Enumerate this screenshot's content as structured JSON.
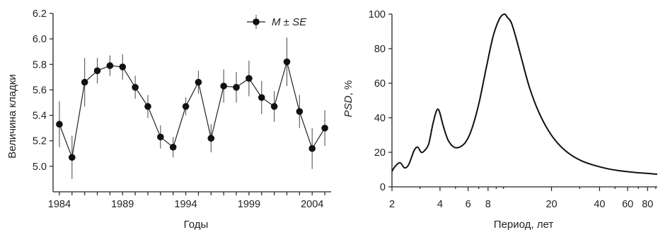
{
  "chart_data": [
    {
      "type": "line",
      "ylabel": "Величина кладки",
      "xlabel": "Годы",
      "xlim": [
        1983.5,
        2005.5
      ],
      "ylim": [
        4.8,
        6.2
      ],
      "x_ticks": [
        1984,
        1989,
        1994,
        1999,
        2004
      ],
      "y_ticks": [
        "5.0",
        "5.2",
        "5.4",
        "5.6",
        "5.8",
        "6.0",
        "6.2"
      ],
      "legend": {
        "prefix": "M",
        "middle": " ± ",
        "suffix": "SE",
        "position": "top-right"
      },
      "series": [
        {
          "name": "M ± SE",
          "x": [
            1984,
            1985,
            1986,
            1987,
            1988,
            1989,
            1990,
            1991,
            1992,
            1993,
            1994,
            1995,
            1996,
            1997,
            1998,
            1999,
            2000,
            2001,
            2002,
            2003,
            2004,
            2005
          ],
          "y": [
            5.33,
            5.07,
            5.66,
            5.75,
            5.79,
            5.78,
            5.62,
            5.47,
            5.23,
            5.15,
            5.47,
            5.66,
            5.22,
            5.63,
            5.62,
            5.69,
            5.54,
            5.47,
            5.82,
            5.43,
            5.14,
            5.3
          ],
          "err": [
            0.18,
            0.17,
            0.19,
            0.1,
            0.08,
            0.1,
            0.09,
            0.09,
            0.09,
            0.08,
            0.07,
            0.09,
            0.11,
            0.13,
            0.12,
            0.14,
            0.13,
            0.12,
            0.19,
            0.13,
            0.16,
            0.14
          ]
        }
      ]
    },
    {
      "type": "line",
      "ylabel_italic": "PSD",
      "ylabel_rest": ", %",
      "xlabel": "Период, лет",
      "x_scale": "log",
      "xlim": [
        2,
        92
      ],
      "ylim": [
        0,
        100
      ],
      "x_ticks": [
        2,
        4,
        6,
        8,
        20,
        40,
        60,
        80
      ],
      "y_ticks": [
        "0",
        "20",
        "40",
        "60",
        "80",
        "100"
      ],
      "series": [
        {
          "x": [
            2.0,
            2.1,
            2.25,
            2.4,
            2.55,
            2.75,
            2.9,
            3.05,
            3.2,
            3.4,
            3.6,
            3.8,
            3.95,
            4.2,
            4.5,
            4.9,
            5.3,
            5.8,
            6.3,
            7.0,
            7.8,
            8.6,
            9.4,
            10.1,
            10.6,
            11.2,
            12.0,
            13.0,
            14.5,
            16.5,
            19.0,
            22.0,
            26.0,
            31.0,
            37.0,
            45.0,
            55.0,
            68.0,
            80.0,
            92.0
          ],
          "y": [
            9,
            12,
            14,
            11,
            13,
            21,
            23,
            20,
            21,
            25,
            36,
            44,
            44,
            35,
            27,
            23,
            23,
            26,
            33,
            48,
            69,
            87,
            97,
            100,
            98,
            95,
            86,
            74,
            58,
            44,
            33,
            25,
            19,
            15,
            12.5,
            10.5,
            9.2,
            8.3,
            7.8,
            7.3
          ]
        }
      ]
    }
  ]
}
